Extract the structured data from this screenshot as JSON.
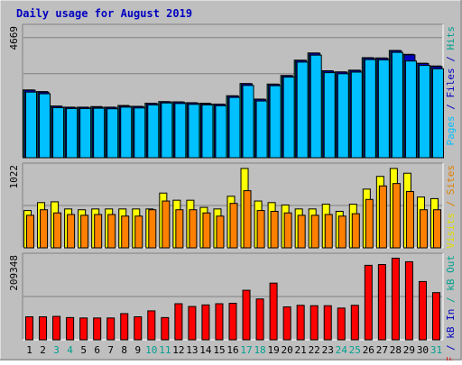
{
  "chart_data": [
    {
      "type": "bar",
      "title": "Daily usage for August 2019",
      "title_color": "#0000c0",
      "ylabel": "4669",
      "ylim": [
        0,
        4669
      ],
      "grid": true,
      "legend": [
        {
          "label": "Pages",
          "color": "#00c0ff"
        },
        {
          "label": "/",
          "color": "#0000c0"
        },
        {
          "label": "Files",
          "color": "#0000c0"
        },
        {
          "label": "/",
          "color": "#0000c0"
        },
        {
          "label": "Hits",
          "color": "#00a090"
        }
      ],
      "series": [
        {
          "name": "Hits",
          "color": "#00a090",
          "values": [
            2440,
            2380,
            1860,
            1820,
            1820,
            1840,
            1820,
            1880,
            1850,
            1960,
            2020,
            2010,
            1980,
            1960,
            1930,
            2230,
            2670,
            2110,
            2650,
            2960,
            3510,
            3770,
            3130,
            3090,
            3150,
            3600,
            3590,
            3860,
            3720,
            3400,
            3300
          ]
        },
        {
          "name": "Files",
          "color": "#0000c0",
          "values": [
            2430,
            2360,
            1850,
            1810,
            1810,
            1820,
            1810,
            1860,
            1840,
            1950,
            2010,
            2000,
            1970,
            1940,
            1920,
            2220,
            2660,
            2100,
            2640,
            2950,
            3500,
            3760,
            3120,
            3080,
            3140,
            3590,
            3580,
            3850,
            3700,
            3390,
            3280
          ]
        },
        {
          "name": "Pages",
          "color": "#00c0ff",
          "values": [
            2360,
            2300,
            1800,
            1770,
            1770,
            1780,
            1760,
            1820,
            1790,
            1900,
            1970,
            1950,
            1920,
            1900,
            1870,
            2170,
            2600,
            2040,
            2590,
            2900,
            3440,
            3690,
            3060,
            3020,
            3080,
            3530,
            3520,
            3790,
            3480,
            3320,
            3200
          ]
        }
      ]
    },
    {
      "type": "bar",
      "ylabel": "1022",
      "ylim": [
        0,
        1022
      ],
      "grid": true,
      "legend": [
        {
          "label": "Visits",
          "color": "#e0e000"
        },
        {
          "label": "/",
          "color": "#e08000"
        },
        {
          "label": "Sites",
          "color": "#e08000"
        }
      ],
      "series": [
        {
          "name": "Visits",
          "color": "#ffff00",
          "values": [
            470,
            570,
            580,
            490,
            480,
            490,
            490,
            490,
            490,
            490,
            690,
            600,
            600,
            510,
            490,
            650,
            1000,
            590,
            570,
            540,
            490,
            490,
            550,
            460,
            550,
            740,
            900,
            1000,
            940,
            640,
            620
          ]
        },
        {
          "name": "Sites",
          "color": "#ff8000",
          "values": [
            410,
            480,
            440,
            420,
            410,
            420,
            420,
            400,
            400,
            480,
            590,
            480,
            480,
            440,
            400,
            560,
            720,
            470,
            460,
            440,
            410,
            410,
            420,
            400,
            430,
            610,
            780,
            810,
            710,
            480,
            480
          ]
        }
      ]
    },
    {
      "type": "bar",
      "ylabel": "209348",
      "ylim": [
        0,
        209348
      ],
      "grid": true,
      "legend": [
        {
          "label": "kB F",
          "color": "#e00000"
        },
        {
          "label": "/",
          "color": "#0000c0"
        },
        {
          "label": "kB In",
          "color": "#0000c0"
        },
        {
          "label": "/",
          "color": "#00a090"
        },
        {
          "label": "kB Out",
          "color": "#00a090"
        }
      ],
      "series": [
        {
          "name": "kB F",
          "color": "#ff0000",
          "values": [
            58000,
            58000,
            59000,
            56000,
            55000,
            55000,
            55000,
            66000,
            58000,
            73000,
            56000,
            91000,
            84000,
            88000,
            91000,
            92000,
            125000,
            103000,
            143000,
            83000,
            87000,
            86000,
            86000,
            80000,
            87000,
            188000,
            190000,
            206000,
            197000,
            147000,
            119000
          ]
        }
      ]
    }
  ],
  "x_labels": {
    "categories": [
      "1",
      "2",
      "3",
      "4",
      "5",
      "6",
      "7",
      "8",
      "9",
      "10",
      "11",
      "12",
      "13",
      "14",
      "15",
      "16",
      "17",
      "18",
      "19",
      "20",
      "21",
      "22",
      "23",
      "24",
      "25",
      "26",
      "27",
      "28",
      "29",
      "30",
      "31"
    ],
    "weekend": [
      false,
      false,
      true,
      true,
      false,
      false,
      false,
      false,
      false,
      true,
      true,
      false,
      false,
      false,
      false,
      false,
      true,
      true,
      false,
      false,
      false,
      false,
      false,
      true,
      true,
      false,
      false,
      false,
      false,
      false,
      true
    ],
    "weekday_color": "#000000",
    "weekend_color": "#00a090"
  }
}
